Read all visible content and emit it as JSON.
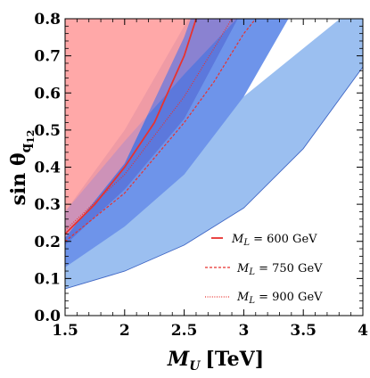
{
  "chart_data": {
    "type": "area",
    "xlabel": {
      "main": "M",
      "sub": "U",
      "unit": "[TeV]"
    },
    "ylabel": {
      "main": "sin θ",
      "sub": "q",
      "subsub": "12"
    },
    "xlim": [
      1.5,
      4.0
    ],
    "ylim": [
      0.0,
      0.8
    ],
    "xticks": [
      "1.5",
      "2",
      "2.5",
      "3",
      "3.5",
      "4"
    ],
    "yticks": [
      "0.0",
      "0.1",
      "0.2",
      "0.3",
      "0.4",
      "0.5",
      "0.6",
      "0.7",
      "0.8"
    ],
    "grid": false,
    "legend_position": "bottom-right",
    "colors": {
      "excluded_region": "#ff9e9e",
      "band_outer": "#9bbff0",
      "band_middle": "#6e94ea",
      "band_inner": "#5c78dc",
      "overlap": "#b08ac8",
      "curves": "#e8322f"
    },
    "regions": [
      {
        "role": "excluded",
        "lower_x": [
          1.5,
          2.0,
          2.5,
          3.0
        ],
        "lower_y": [
          0.21,
          0.41,
          0.75,
          1.2
        ]
      },
      {
        "role": "outer-band",
        "x": [
          1.5,
          2.0,
          2.5,
          3.0,
          3.5,
          4.0
        ],
        "lower": [
          0.072,
          0.12,
          0.19,
          0.29,
          0.45,
          0.67
        ],
        "upper": [
          0.21,
          0.34,
          0.47,
          0.59,
          0.72,
          0.85
        ]
      },
      {
        "role": "middle-band",
        "x": [
          1.5,
          2.0,
          2.5,
          3.0,
          3.5
        ],
        "lower": [
          0.13,
          0.24,
          0.38,
          0.59,
          0.87
        ],
        "upper": [
          0.28,
          0.47,
          0.65,
          0.82,
          1.0
        ]
      },
      {
        "role": "inner-band",
        "x": [
          1.5,
          2.0,
          2.5,
          3.0
        ],
        "lower": [
          0.19,
          0.34,
          0.53,
          0.83
        ],
        "upper": [
          0.28,
          0.5,
          0.78,
          1.06
        ]
      }
    ],
    "series": [
      {
        "name": "M_L = 600 GeV",
        "label": {
          "main": "M",
          "sub": "L",
          "rest": " = 600 GeV"
        },
        "style": "solid",
        "x": [
          1.5,
          1.75,
          2.0,
          2.25,
          2.5,
          2.6
        ],
        "y": [
          0.22,
          0.3,
          0.4,
          0.52,
          0.7,
          0.8
        ]
      },
      {
        "name": "M_L = 750 GeV",
        "label": {
          "main": "M",
          "sub": "L",
          "rest": " = 750 GeV"
        },
        "style": "dashed",
        "x": [
          1.5,
          2.0,
          2.5,
          2.75,
          3.0,
          3.1
        ],
        "y": [
          0.2,
          0.33,
          0.52,
          0.63,
          0.76,
          0.8
        ]
      },
      {
        "name": "M_L = 900 GeV",
        "label": {
          "main": "M",
          "sub": "L",
          "rest": " = 900 GeV"
        },
        "style": "dotted",
        "x": [
          1.5,
          2.0,
          2.5,
          2.75,
          2.9
        ],
        "y": [
          0.23,
          0.38,
          0.59,
          0.72,
          0.8
        ]
      }
    ]
  }
}
